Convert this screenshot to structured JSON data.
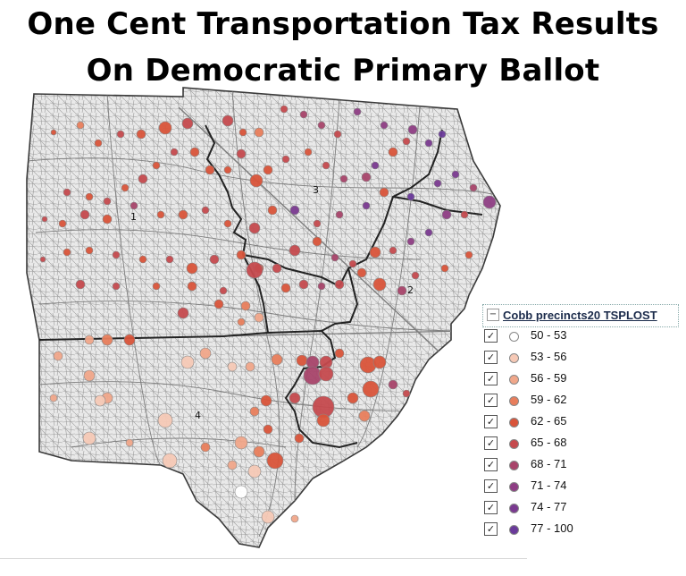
{
  "title": {
    "line1": "One Cent Transportation Tax Results",
    "line2": "On Democratic Primary Ballot"
  },
  "map": {
    "district_labels": [
      "1",
      "2",
      "3",
      "4"
    ]
  },
  "legend": {
    "layer_name": "Cobb precincts20 TSPLOST",
    "items": [
      {
        "range": "50 - 53",
        "color": "#ffffff"
      },
      {
        "range": "53 - 56",
        "color": "#f6c9b6"
      },
      {
        "range": "56 - 59",
        "color": "#f0a78a"
      },
      {
        "range": "59 - 62",
        "color": "#e87e5c"
      },
      {
        "range": "62 - 65",
        "color": "#d9543a"
      },
      {
        "range": "65 - 68",
        "color": "#c54a4e"
      },
      {
        "range": "68 - 71",
        "color": "#a8446a"
      },
      {
        "range": "71 - 74",
        "color": "#8e3e84"
      },
      {
        "range": "74 - 77",
        "color": "#7a3a90"
      },
      {
        "range": "77 - 100",
        "color": "#6a3a9a"
      }
    ]
  }
}
